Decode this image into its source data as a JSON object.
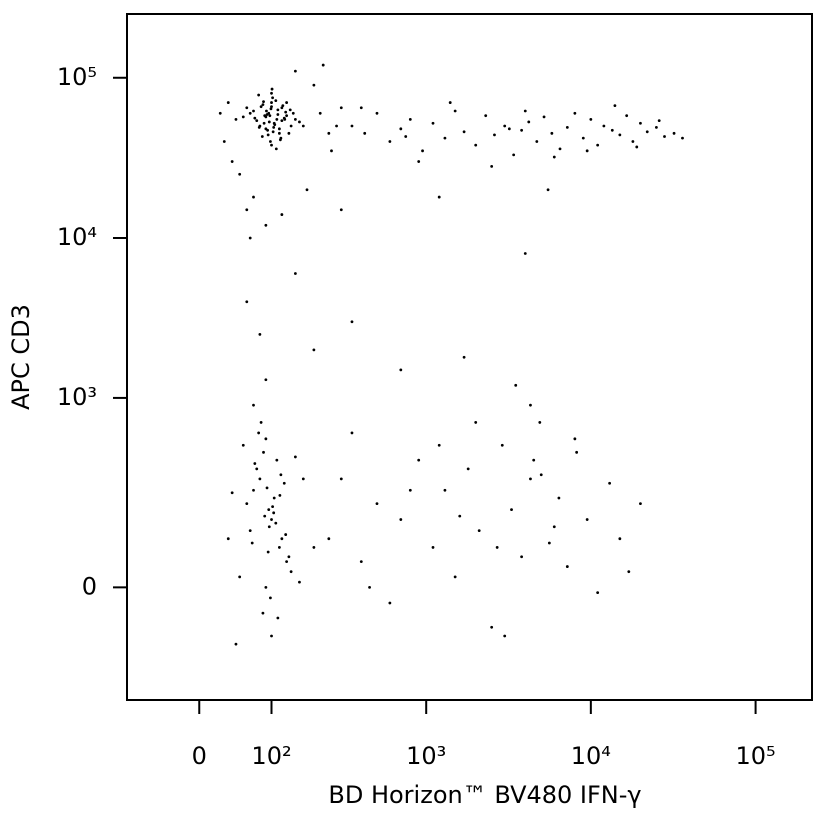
{
  "chart_data": {
    "type": "scatter",
    "x_label": "BD Horizon™ BV480 IFN-γ",
    "y_label": "APC CD3",
    "color": "#000000",
    "xscale": "biexponential",
    "yscale": "biexponential",
    "xlim": [
      -100,
      220000
    ],
    "ylim": [
      -320,
      250000
    ],
    "xticks": [
      0,
      {
        "value": 100,
        "label": "10²"
      },
      {
        "value": 1000,
        "label": "10³"
      },
      {
        "value": 10000,
        "label": "10⁴"
      },
      {
        "value": 100000,
        "label": "10⁵"
      }
    ],
    "yticks": [
      0,
      {
        "value": 1000,
        "label": "10³"
      },
      {
        "value": 10000,
        "label": "10⁴"
      },
      {
        "value": 100000,
        "label": "10⁵"
      }
    ],
    "x": [
      95,
      110,
      80,
      120,
      100,
      90,
      130,
      70,
      105,
      115,
      85,
      125,
      98,
      102,
      88,
      140,
      75,
      112,
      93,
      108,
      65,
      150,
      100,
      118,
      82,
      96,
      128,
      104,
      90,
      135,
      78,
      100,
      112,
      87,
      122,
      99,
      106,
      72,
      145,
      94,
      160,
      60,
      115,
      101,
      84,
      130,
      97,
      109,
      91,
      120,
      55,
      170,
      103,
      86,
      138,
      92,
      117,
      79,
      126,
      100,
      30,
      45,
      220,
      250,
      180,
      40,
      60,
      200,
      150,
      35,
      70,
      260,
      90,
      280,
      50,
      230,
      120,
      25,
      300,
      65,
      350,
      420,
      500,
      600,
      700,
      800,
      950,
      1100,
      1300,
      1500,
      1700,
      2000,
      2300,
      2600,
      3000,
      3400,
      3800,
      4200,
      4700,
      5200,
      5800,
      6500,
      7200,
      8000,
      9000,
      10000,
      11000,
      12000,
      13500,
      15000,
      16500,
      18000,
      20000,
      22000,
      25000,
      28000,
      32000,
      36000,
      400,
      900,
      1400,
      2500,
      4000,
      6000,
      9500,
      14000,
      19000,
      26000,
      750,
      3200,
      60,
      150,
      80,
      350,
      700,
      1700,
      3500,
      4000,
      90,
      5500,
      300,
      1200,
      200,
      4300,
      70,
      60,
      80,
      100,
      120,
      90,
      70,
      110,
      130,
      85,
      95,
      75,
      105,
      115,
      65,
      125,
      55,
      140,
      100,
      88,
      92,
      50,
      150,
      78,
      108,
      98,
      118,
      68,
      82,
      135,
      102,
      40,
      160,
      96,
      112,
      72,
      86,
      128,
      104,
      94,
      116,
      45,
      170,
      90,
      200,
      35,
      250,
      300,
      400,
      500,
      600,
      700,
      900,
      1100,
      1300,
      1500,
      1800,
      2100,
      2500,
      2900,
      3300,
      3800,
      4300,
      4900,
      5600,
      6400,
      7200,
      8200,
      9500,
      11000,
      13000,
      15000,
      17000,
      20000,
      350,
      800,
      1200,
      2000,
      3000,
      4500,
      6000,
      8000,
      450,
      1600,
      2700,
      5000
    ],
    "y": [
      60000,
      55000,
      50000,
      65000,
      70000,
      48000,
      58000,
      62000,
      52000,
      45000,
      68000,
      56000,
      40000,
      75000,
      58000,
      50000,
      54000,
      63000,
      47000,
      72000,
      60000,
      55000,
      80000,
      42000,
      66000,
      53000,
      61000,
      49000,
      57000,
      45000,
      78000,
      38000,
      59000,
      52000,
      67000,
      64000,
      51000,
      56000,
      60000,
      44000,
      53000,
      65000,
      48000,
      85000,
      43000,
      70000,
      58000,
      36000,
      62000,
      54000,
      57000,
      50000,
      46000,
      71000,
      63000,
      59000,
      41000,
      49000,
      55000,
      66000,
      40000,
      55000,
      60000,
      45000,
      20000,
      30000,
      15000,
      90000,
      110000,
      70000,
      18000,
      35000,
      12000,
      50000,
      25000,
      120000,
      14000,
      60000,
      65000,
      10000,
      50000,
      45000,
      60000,
      40000,
      48000,
      55000,
      35000,
      52000,
      42000,
      62000,
      46000,
      38000,
      58000,
      44000,
      50000,
      33000,
      47000,
      53000,
      40000,
      57000,
      45000,
      36000,
      49000,
      60000,
      42000,
      55000,
      38000,
      50000,
      47000,
      44000,
      58000,
      40000,
      52000,
      46000,
      49000,
      43000,
      45000,
      42000,
      65000,
      30000,
      70000,
      28000,
      62000,
      32000,
      35000,
      67000,
      37000,
      54000,
      43000,
      48000,
      4000,
      6000,
      2500,
      3000,
      1500,
      1800,
      1200,
      8000,
      1300,
      20000,
      15000,
      18000,
      2000,
      900,
      900,
      200,
      300,
      150,
      100,
      0,
      250,
      400,
      50,
      -50,
      180,
      350,
      220,
      80,
      120,
      280,
      500,
      30,
      -100,
      160,
      260,
      20,
      420,
      600,
      140,
      -20,
      320,
      90,
      700,
      60,
      190,
      240,
      10,
      130,
      -60,
      380,
      450,
      110,
      170,
      70,
      230,
      -120,
      300,
      550,
      80,
      100,
      100,
      300,
      50,
      200,
      -30,
      150,
      400,
      80,
      250,
      20,
      350,
      120,
      -80,
      500,
      180,
      60,
      300,
      700,
      90,
      220,
      40,
      450,
      150,
      -10,
      280,
      100,
      30,
      200,
      600,
      250,
      500,
      700,
      -100,
      400,
      130,
      550,
      0,
      160,
      80,
      320
    ]
  }
}
